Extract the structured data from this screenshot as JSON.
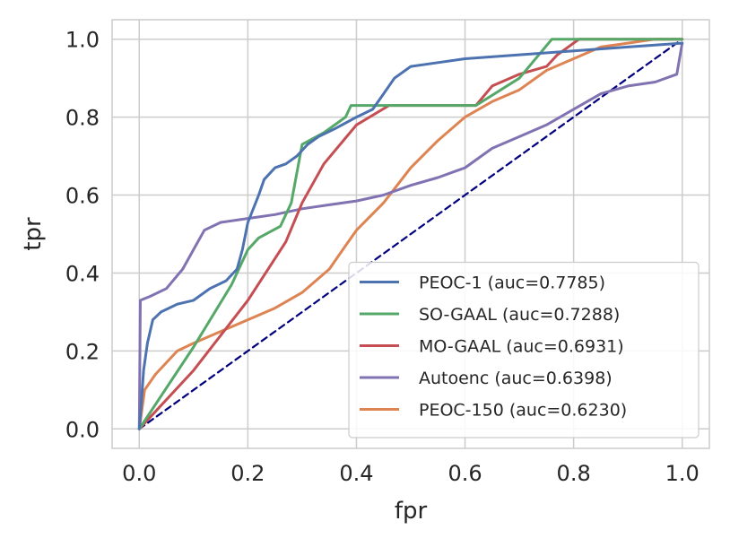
{
  "chart_data": {
    "type": "line",
    "title": "",
    "xlabel": "fpr",
    "ylabel": "tpr",
    "xlim": [
      -0.05,
      1.05
    ],
    "ylim": [
      -0.05,
      1.05
    ],
    "xticks": [
      0.0,
      0.2,
      0.4,
      0.6,
      0.8,
      1.0
    ],
    "yticks": [
      0.0,
      0.2,
      0.4,
      0.6,
      0.8,
      1.0
    ],
    "xtick_labels": [
      "0.0",
      "0.2",
      "0.4",
      "0.6",
      "0.8",
      "1.0"
    ],
    "ytick_labels": [
      "0.0",
      "0.2",
      "0.4",
      "0.6",
      "0.8",
      "1.0"
    ],
    "grid": true,
    "legend_position": "lower-right",
    "series": [
      {
        "name": "PEOC-1 (auc=0.7785)",
        "color": "#4c72b0",
        "x": [
          0,
          0.003,
          0.008,
          0.015,
          0.025,
          0.04,
          0.07,
          0.1,
          0.13,
          0.16,
          0.18,
          0.19,
          0.2,
          0.22,
          0.23,
          0.25,
          0.27,
          0.29,
          0.31,
          0.33,
          0.36,
          0.4,
          0.43,
          0.45,
          0.47,
          0.5,
          0.55,
          0.6,
          0.7,
          0.8,
          0.9,
          1.0
        ],
        "y": [
          0,
          0.05,
          0.15,
          0.22,
          0.28,
          0.3,
          0.32,
          0.33,
          0.36,
          0.38,
          0.41,
          0.46,
          0.53,
          0.6,
          0.64,
          0.67,
          0.68,
          0.7,
          0.73,
          0.75,
          0.77,
          0.8,
          0.82,
          0.86,
          0.9,
          0.93,
          0.94,
          0.95,
          0.96,
          0.97,
          0.98,
          0.99
        ]
      },
      {
        "name": "SO-GAAL (auc=0.7288)",
        "color": "#55a868",
        "x": [
          0,
          0.1,
          0.17,
          0.2,
          0.22,
          0.26,
          0.28,
          0.3,
          0.34,
          0.38,
          0.39,
          0.46,
          0.62,
          0.7,
          0.76,
          1.0
        ],
        "y": [
          0,
          0.21,
          0.37,
          0.46,
          0.49,
          0.52,
          0.58,
          0.73,
          0.76,
          0.8,
          0.83,
          0.83,
          0.83,
          0.9,
          1.0,
          1.0
        ]
      },
      {
        "name": "MO-GAAL (auc=0.6931)",
        "color": "#c44e52",
        "x": [
          0,
          0.1,
          0.2,
          0.27,
          0.3,
          0.34,
          0.4,
          0.46,
          0.62,
          0.65,
          0.7,
          0.75,
          0.77,
          0.81,
          1.0
        ],
        "y": [
          0,
          0.15,
          0.33,
          0.48,
          0.58,
          0.68,
          0.78,
          0.83,
          0.83,
          0.88,
          0.91,
          0.93,
          0.96,
          1.0,
          1.0
        ]
      },
      {
        "name": "Autoenc (auc=0.6398)",
        "color": "#8172b2",
        "x": [
          0,
          0.002,
          0.02,
          0.05,
          0.08,
          0.1,
          0.12,
          0.15,
          0.2,
          0.25,
          0.3,
          0.35,
          0.4,
          0.45,
          0.5,
          0.55,
          0.6,
          0.65,
          0.7,
          0.75,
          0.8,
          0.85,
          0.9,
          0.95,
          0.99,
          1.0
        ],
        "y": [
          0,
          0.33,
          0.34,
          0.36,
          0.41,
          0.46,
          0.51,
          0.53,
          0.54,
          0.55,
          0.565,
          0.575,
          0.585,
          0.6,
          0.625,
          0.645,
          0.67,
          0.72,
          0.75,
          0.78,
          0.82,
          0.86,
          0.88,
          0.89,
          0.91,
          0.99
        ]
      },
      {
        "name": "PEOC-150 (auc=0.6230)",
        "color": "#dd8452",
        "x": [
          0,
          0.01,
          0.03,
          0.07,
          0.1,
          0.15,
          0.2,
          0.25,
          0.3,
          0.35,
          0.38,
          0.4,
          0.45,
          0.5,
          0.55,
          0.6,
          0.65,
          0.7,
          0.75,
          0.8,
          0.85,
          0.9,
          0.95,
          1.0
        ],
        "y": [
          0,
          0.1,
          0.14,
          0.2,
          0.22,
          0.25,
          0.28,
          0.31,
          0.35,
          0.41,
          0.47,
          0.51,
          0.58,
          0.67,
          0.74,
          0.8,
          0.84,
          0.87,
          0.92,
          0.95,
          0.98,
          0.99,
          1.0,
          1.0
        ]
      },
      {
        "name": "reference",
        "color": "#00007f",
        "dashed": true,
        "x": [
          0,
          1
        ],
        "y": [
          0,
          1
        ]
      }
    ]
  }
}
